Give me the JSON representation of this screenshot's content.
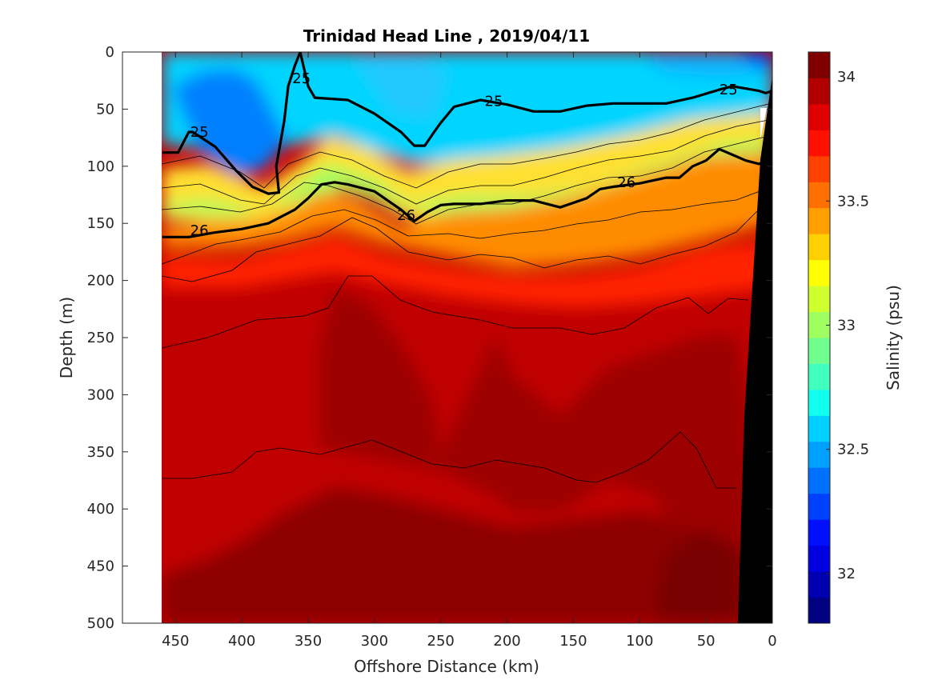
{
  "chart_data": {
    "type": "heatmap",
    "subtype": "filled-contour-section",
    "title": "Trinidad Head Line , 2019/04/11",
    "xlabel": "Offshore Distance (km)",
    "ylabel": "Depth (m)",
    "colorbar_label": "Salinity (psu)",
    "x_reversed": true,
    "y_reversed": true,
    "xlim": [
      490,
      0
    ],
    "ylim": [
      500,
      0
    ],
    "xticks": [
      450,
      400,
      350,
      300,
      250,
      200,
      150,
      100,
      50,
      0
    ],
    "yticks": [
      0,
      50,
      100,
      150,
      200,
      250,
      300,
      350,
      400,
      450,
      500
    ],
    "clim": [
      31.8,
      34.1
    ],
    "colorbar_ticks": [
      32,
      32.5,
      33,
      33.5,
      34
    ],
    "colormap": [
      "#000080",
      "#0000b0",
      "#0000e0",
      "#0010ff",
      "#0040ff",
      "#0070ff",
      "#00a0ff",
      "#00d0ff",
      "#10ffef",
      "#40ffbf",
      "#70ff8f",
      "#a0ff60",
      "#d0ff30",
      "#ffff00",
      "#ffd000",
      "#ffa000",
      "#ff7000",
      "#ff4000",
      "#ff1000",
      "#e00000",
      "#b00000",
      "#800000"
    ],
    "data_extent_km": [
      460,
      0
    ],
    "isopycnals": [
      {
        "label": "25",
        "kind": "bold",
        "x": [
          460,
          448,
          440,
          437,
          420,
          405,
          392,
          380,
          372,
          374,
          368,
          365,
          360,
          356,
          350,
          345,
          320,
          300,
          280,
          270,
          262,
          255,
          250,
          240,
          220,
          200,
          180,
          160,
          140,
          120,
          100,
          80,
          60,
          40,
          30,
          20,
          10,
          5,
          0
        ],
        "y": [
          88,
          88,
          70,
          70,
          83,
          103,
          118,
          124,
          123,
          100,
          60,
          30,
          12,
          0,
          30,
          40,
          42,
          54,
          70,
          82,
          82,
          70,
          62,
          48,
          42,
          46,
          52,
          52,
          47,
          45,
          45,
          45,
          40,
          33,
          30,
          32,
          34,
          36,
          34
        ]
      },
      {
        "label": "26",
        "kind": "bold",
        "x": [
          460,
          440,
          420,
          400,
          380,
          360,
          350,
          340,
          330,
          320,
          300,
          280,
          270,
          260,
          250,
          240,
          220,
          200,
          180,
          160,
          140,
          130,
          120,
          100,
          80,
          70,
          60,
          50,
          40,
          30,
          20,
          10,
          5
        ],
        "y": [
          162,
          162,
          158,
          155,
          150,
          138,
          128,
          116,
          114,
          116,
          122,
          138,
          148,
          140,
          134,
          133,
          133,
          130,
          130,
          136,
          128,
          120,
          118,
          115,
          110,
          110,
          100,
          95,
          85,
          90,
          95,
          98,
          95
        ]
      }
    ],
    "contour_labels": [
      {
        "text": "25",
        "x": 355,
        "y": 23
      },
      {
        "text": "25",
        "x": 432,
        "y": 70
      },
      {
        "text": "25",
        "x": 210,
        "y": 43
      },
      {
        "text": "25",
        "x": 33,
        "y": 33
      },
      {
        "text": "26",
        "x": 432,
        "y": 156
      },
      {
        "text": "26",
        "x": 276,
        "y": 143
      },
      {
        "text": "26",
        "x": 110,
        "y": 114
      }
    ]
  }
}
